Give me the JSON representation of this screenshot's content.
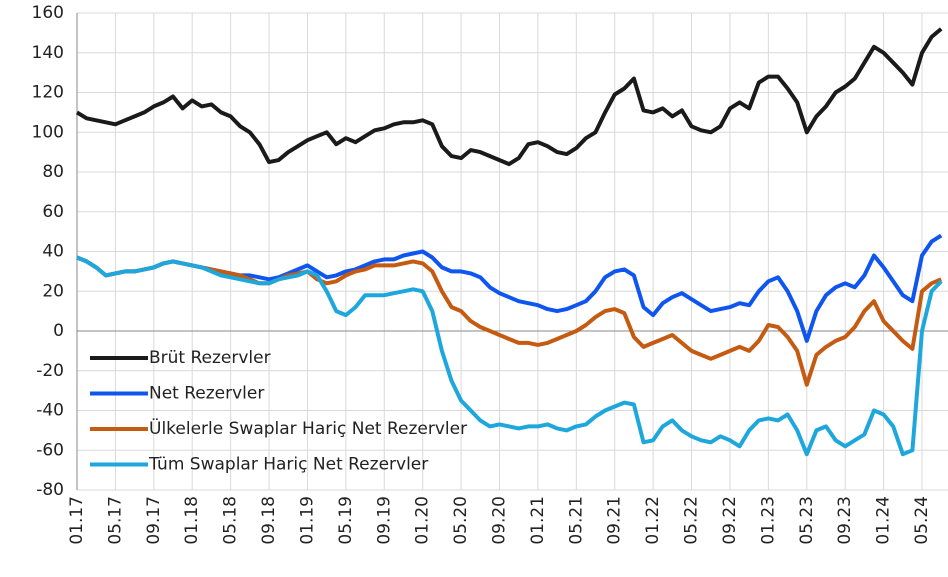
{
  "chart_data": {
    "type": "line",
    "categories": [
      "01.17",
      null,
      null,
      null,
      "05.17",
      null,
      null,
      null,
      "09.17",
      null,
      null,
      null,
      "01.18",
      null,
      null,
      null,
      "05.18",
      null,
      null,
      null,
      "09.18",
      null,
      null,
      null,
      "01.19",
      null,
      null,
      null,
      "05.19",
      null,
      null,
      null,
      "09.19",
      null,
      null,
      null,
      "01.20",
      null,
      null,
      null,
      "05.20",
      null,
      null,
      null,
      "09.20",
      null,
      null,
      null,
      "01.21",
      null,
      null,
      null,
      "05.21",
      null,
      null,
      null,
      "09.21",
      null,
      null,
      null,
      "01.22",
      null,
      null,
      null,
      "05.22",
      null,
      null,
      null,
      "09.22",
      null,
      null,
      null,
      "01.23",
      null,
      null,
      null,
      "05.23",
      null,
      null,
      null,
      "09.23",
      null,
      null,
      null,
      "01.24",
      null,
      null,
      null,
      "05.24",
      null,
      null
    ],
    "series": [
      {
        "name": "Brüt Rezervler",
        "color": "#1a1a1a",
        "values": [
          110,
          107,
          106,
          105,
          104,
          106,
          108,
          110,
          113,
          115,
          118,
          112,
          116,
          113,
          114,
          110,
          108,
          103,
          100,
          94,
          85,
          86,
          90,
          93,
          96,
          98,
          100,
          94,
          97,
          95,
          98,
          101,
          102,
          104,
          105,
          105,
          106,
          104,
          93,
          88,
          87,
          91,
          90,
          88,
          86,
          84,
          87,
          94,
          95,
          93,
          90,
          89,
          92,
          97,
          100,
          110,
          119,
          122,
          127,
          111,
          110,
          112,
          108,
          111,
          103,
          101,
          100,
          103,
          112,
          115,
          112,
          125,
          128,
          128,
          122,
          115,
          100,
          108,
          113,
          120,
          123,
          127,
          135,
          143,
          140,
          135,
          130,
          124,
          140,
          148,
          152
        ]
      },
      {
        "name": "Net Rezervler",
        "color": "#0f55f0",
        "values": [
          37,
          35,
          32,
          28,
          29,
          30,
          30,
          31,
          32,
          34,
          35,
          34,
          33,
          32,
          31,
          30,
          29,
          28,
          28,
          27,
          26,
          27,
          29,
          31,
          33,
          30,
          27,
          28,
          30,
          31,
          33,
          35,
          36,
          36,
          38,
          39,
          40,
          37,
          32,
          30,
          30,
          29,
          27,
          22,
          19,
          17,
          15,
          14,
          13,
          11,
          10,
          11,
          13,
          15,
          20,
          27,
          30,
          31,
          28,
          12,
          8,
          14,
          17,
          19,
          16,
          13,
          10,
          11,
          12,
          14,
          13,
          20,
          25,
          27,
          20,
          10,
          -5,
          10,
          18,
          22,
          24,
          22,
          28,
          38,
          32,
          25,
          18,
          15,
          38,
          45,
          48
        ]
      },
      {
        "name": "Ülkelerle Swaplar Hariç Net Rezervler",
        "color": "#c55a11",
        "values": [
          37,
          35,
          32,
          28,
          29,
          30,
          30,
          31,
          32,
          34,
          35,
          34,
          33,
          32,
          31,
          30,
          29,
          28,
          26,
          24,
          24,
          26,
          28,
          29,
          30,
          26,
          24,
          25,
          28,
          30,
          31,
          33,
          33,
          33,
          34,
          35,
          34,
          30,
          20,
          12,
          10,
          5,
          2,
          0,
          -2,
          -4,
          -6,
          -6,
          -7,
          -6,
          -4,
          -2,
          0,
          3,
          7,
          10,
          11,
          9,
          -3,
          -8,
          -6,
          -4,
          -2,
          -6,
          -10,
          -12,
          -14,
          -12,
          -10,
          -8,
          -10,
          -5,
          3,
          2,
          -3,
          -10,
          -27,
          -12,
          -8,
          -5,
          -3,
          2,
          10,
          15,
          5,
          0,
          -5,
          -9,
          20,
          24,
          26
        ]
      },
      {
        "name": "Tüm Swaplar Hariç Net Rezervler",
        "color": "#1ea7dc",
        "values": [
          37,
          35,
          32,
          28,
          29,
          30,
          30,
          31,
          32,
          34,
          35,
          34,
          33,
          32,
          30,
          28,
          27,
          26,
          25,
          24,
          24,
          26,
          27,
          28,
          30,
          28,
          20,
          10,
          8,
          12,
          18,
          18,
          18,
          19,
          20,
          21,
          20,
          10,
          -10,
          -25,
          -35,
          -40,
          -45,
          -48,
          -47,
          -48,
          -49,
          -48,
          -48,
          -47,
          -49,
          -50,
          -48,
          -47,
          -43,
          -40,
          -38,
          -36,
          -37,
          -56,
          -55,
          -48,
          -45,
          -50,
          -53,
          -55,
          -56,
          -53,
          -55,
          -58,
          -50,
          -45,
          -44,
          -45,
          -42,
          -50,
          -62,
          -50,
          -48,
          -55,
          -58,
          -55,
          -52,
          -40,
          -42,
          -48,
          -62,
          -60,
          0,
          20,
          25
        ]
      }
    ],
    "ylim": [
      -80,
      160
    ],
    "yticks": [
      -80,
      -60,
      -40,
      -20,
      0,
      20,
      40,
      60,
      80,
      100,
      120,
      140,
      160
    ],
    "grid": true,
    "legend": "lower left"
  }
}
